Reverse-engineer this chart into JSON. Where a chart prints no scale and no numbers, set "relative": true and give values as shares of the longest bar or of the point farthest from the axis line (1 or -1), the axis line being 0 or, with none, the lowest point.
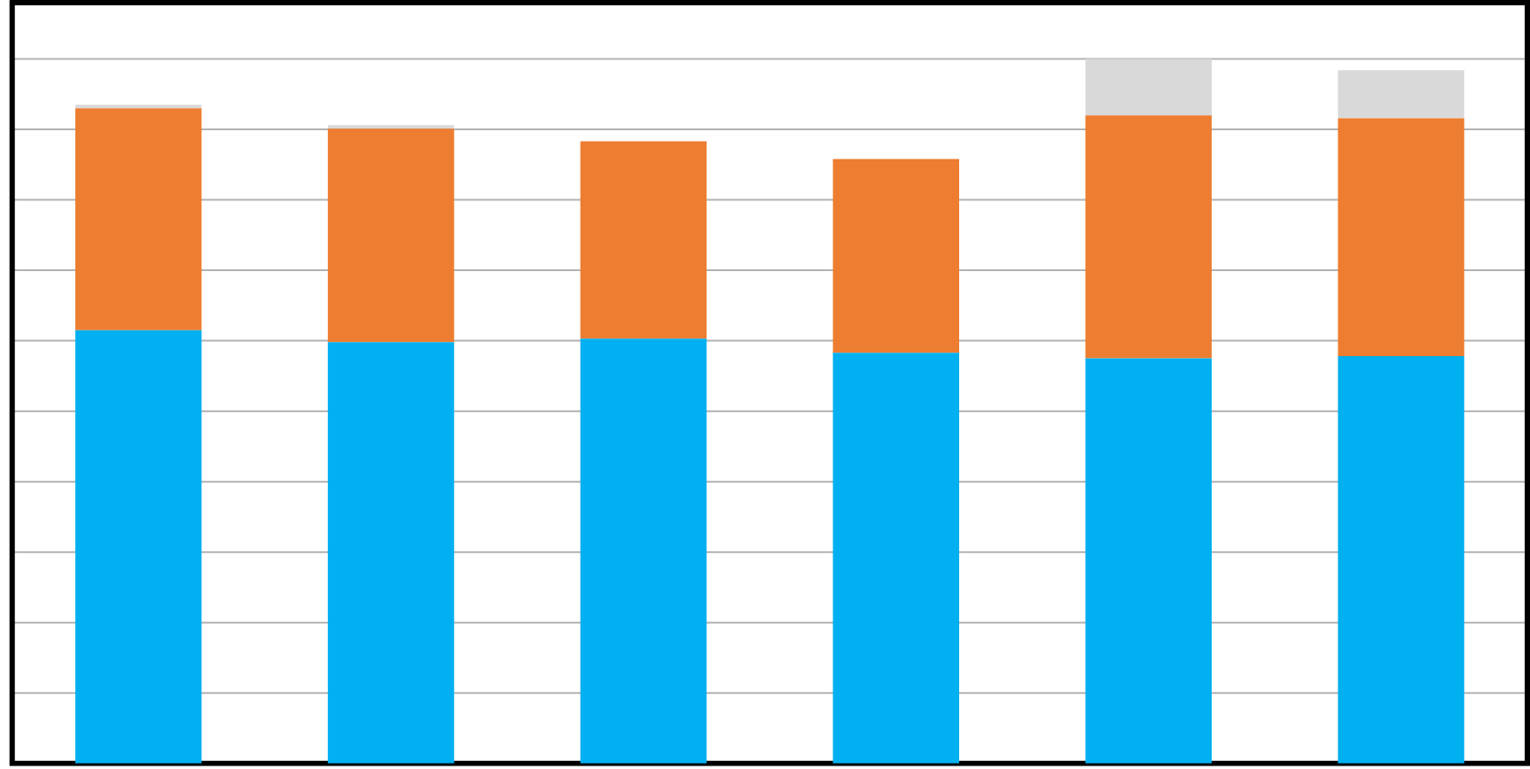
{
  "chart_data": {
    "type": "bar",
    "stacked": true,
    "relative": true,
    "grid": "y",
    "categories": [
      null,
      null,
      null,
      null,
      null,
      null
    ],
    "series": [
      {
        "color": "#00b0f0",
        "values": [
          0.615,
          0.598,
          0.603,
          0.583,
          0.575,
          0.578
        ]
      },
      {
        "color": "#ed7d31",
        "values": [
          0.315,
          0.303,
          0.28,
          0.275,
          0.345,
          0.338
        ]
      },
      {
        "color": "#d9d9d9",
        "values": [
          0.005,
          0.005,
          0,
          0,
          0.08,
          0.068
        ]
      }
    ]
  }
}
